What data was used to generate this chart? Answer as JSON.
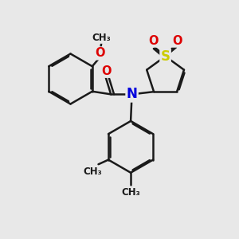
{
  "bg_color": "#e8e8e8",
  "bond_color": "#1a1a1a",
  "N_color": "#0000dd",
  "S_color": "#cccc00",
  "O_color": "#dd0000",
  "lw": 1.8,
  "dbo": 0.055,
  "figsize": [
    3.0,
    3.0
  ],
  "dpi": 100,
  "xlim": [
    0,
    10
  ],
  "ylim": [
    0,
    10
  ]
}
